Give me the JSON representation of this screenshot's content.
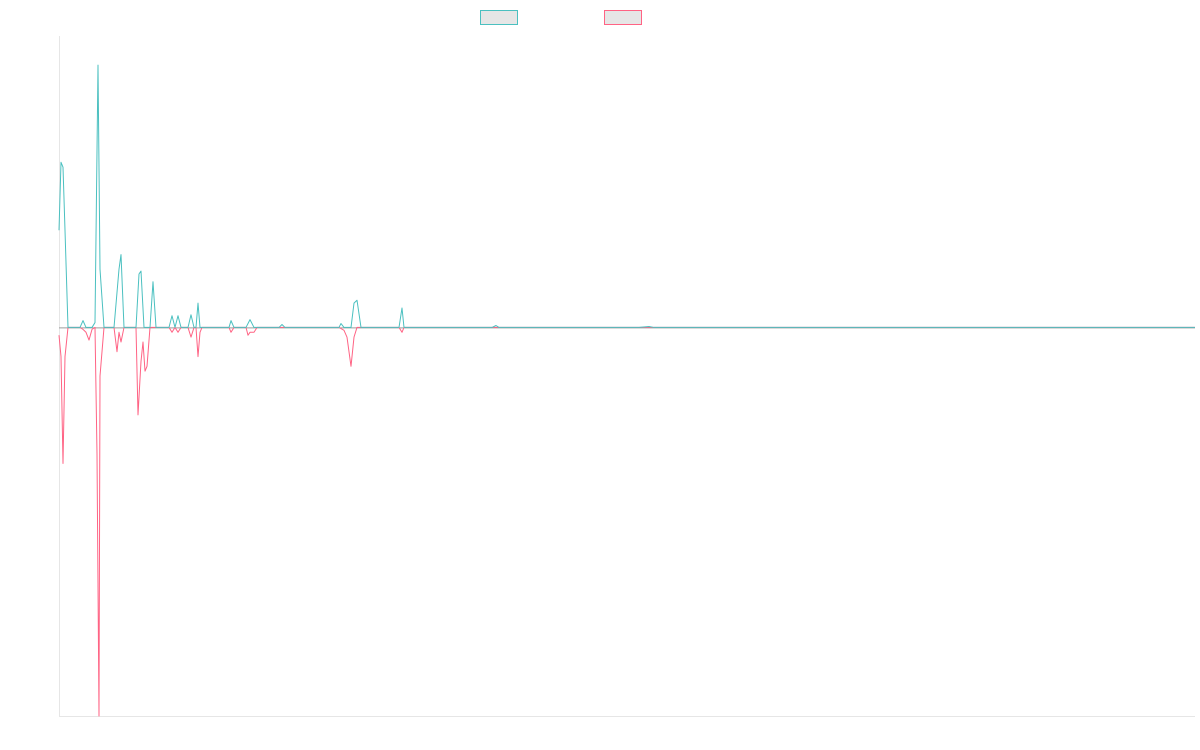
{
  "chart_data": {
    "type": "line",
    "title": "",
    "xlabel": "",
    "ylabel": "",
    "grid": false,
    "legend_position": "top-center",
    "x": [
      0,
      1,
      2,
      3,
      4,
      5,
      6,
      7,
      8,
      9,
      10,
      11,
      12,
      13,
      14,
      15,
      16,
      17,
      18,
      19,
      20,
      21,
      22,
      23,
      24,
      25,
      26,
      27,
      28,
      29,
      30,
      31,
      32,
      33,
      34,
      35,
      36,
      37,
      38,
      39,
      40,
      41,
      42,
      43,
      44,
      45,
      46,
      47,
      48,
      49,
      50,
      51,
      52,
      53,
      54,
      55,
      56,
      57,
      58,
      59,
      60,
      61,
      62,
      63,
      64,
      65,
      66,
      67,
      68,
      69,
      70,
      71,
      72,
      73,
      74,
      75,
      76,
      77,
      78,
      79,
      80,
      81,
      82,
      83,
      84,
      85,
      86,
      87,
      88,
      89,
      90,
      91,
      92,
      93,
      94,
      95,
      96,
      97,
      98,
      99,
      100,
      101,
      102,
      103,
      104,
      105,
      106,
      107,
      108,
      109,
      110,
      111,
      112,
      113,
      114,
      115,
      116,
      117,
      118,
      119,
      120,
      121,
      122,
      123,
      124,
      125,
      126,
      127,
      128,
      129,
      130,
      131,
      132,
      133,
      134,
      135,
      136,
      137,
      138,
      139,
      140,
      141,
      142,
      143,
      144,
      145,
      146,
      147,
      148,
      149,
      150,
      151,
      152,
      153,
      154,
      155,
      156,
      157,
      158,
      159,
      160,
      161,
      162,
      163,
      164,
      165,
      166,
      167,
      168,
      169,
      170,
      171,
      172,
      173,
      174,
      175,
      176,
      177,
      178,
      179,
      180,
      181,
      182,
      183,
      184,
      185,
      186,
      187,
      188,
      189,
      190,
      191,
      192,
      193,
      194,
      195,
      196,
      197,
      198,
      199,
      200,
      201,
      202,
      203,
      204,
      205,
      206,
      207,
      208,
      209,
      210,
      211,
      212,
      213,
      214,
      215,
      216,
      217,
      218,
      219,
      220,
      221,
      222,
      223,
      224,
      225,
      226,
      227,
      228,
      229,
      230,
      231,
      232,
      233,
      234,
      235,
      236,
      237,
      238,
      239,
      240,
      241,
      242,
      243,
      244,
      245,
      246,
      247,
      248,
      249,
      250,
      251,
      252,
      253,
      254,
      255,
      256,
      257,
      258,
      259,
      260,
      261,
      262,
      263,
      264,
      265,
      266,
      267,
      268,
      269,
      270,
      271,
      272,
      273,
      274,
      275,
      276,
      277,
      278,
      279,
      280,
      281,
      282,
      283,
      284,
      285,
      286,
      287,
      288,
      289,
      290,
      291,
      292,
      293,
      294,
      295,
      296,
      297,
      298,
      299,
      300,
      301,
      302,
      303,
      304,
      305,
      306,
      307,
      308,
      309,
      310,
      311,
      312,
      313,
      314,
      315,
      316,
      317,
      318,
      319,
      320,
      321,
      322,
      323,
      324,
      325,
      326,
      327,
      328,
      329,
      330,
      331,
      332,
      333,
      334,
      335,
      336,
      337,
      338,
      339,
      340,
      341,
      342,
      343,
      344,
      345,
      346,
      347,
      348,
      349,
      350,
      351,
      352,
      353,
      354,
      355,
      356,
      357,
      358,
      359,
      360,
      361,
      362,
      363,
      364,
      365,
      366,
      367,
      368,
      369,
      370,
      371,
      372,
      373,
      374,
      375,
      376,
      377,
      378,
      379,
      380,
      381,
      382,
      383,
      384,
      385,
      386,
      387,
      388,
      389,
      390,
      391,
      392,
      393,
      394,
      395,
      396,
      397,
      398,
      399,
      400,
      401,
      402,
      403,
      404,
      405,
      406,
      407,
      408,
      409,
      410,
      411,
      412,
      413,
      414,
      415,
      416,
      417,
      418,
      419,
      420,
      421,
      422,
      423,
      424,
      425,
      426,
      427,
      428,
      429,
      430,
      431,
      432,
      433,
      434,
      435,
      436,
      437,
      438,
      439,
      440,
      441,
      442,
      443,
      444,
      445,
      446,
      447,
      448,
      449,
      450,
      451,
      452,
      453,
      454,
      455,
      456,
      457,
      458,
      459,
      460,
      461,
      462,
      463,
      464,
      465,
      466,
      467,
      468,
      469,
      470,
      471,
      472,
      473,
      474,
      475,
      476,
      477,
      478,
      479,
      480,
      481,
      482,
      483,
      484,
      485,
      486,
      487,
      488,
      489,
      490,
      491,
      492,
      493,
      494,
      495,
      496,
      497,
      498,
      499,
      500,
      501,
      502,
      503,
      504,
      505,
      506,
      507,
      508,
      509,
      510,
      511,
      512,
      513,
      514,
      515,
      516,
      517,
      518,
      519,
      520,
      521,
      522,
      523,
      524,
      525,
      526,
      527,
      528,
      529,
      530,
      531,
      532,
      533,
      534,
      535,
      536,
      537,
      538,
      539,
      540,
      541,
      542,
      543,
      544,
      545,
      546,
      547,
      548,
      549,
      550,
      551,
      552,
      553,
      554,
      555,
      556,
      557,
      558,
      559,
      560,
      561,
      562,
      563,
      564,
      565,
      566,
      567,
      568,
      569,
      570,
      571,
      572,
      573,
      574,
      575,
      576,
      577,
      578,
      579,
      580,
      581,
      582,
      583,
      584,
      585,
      586,
      587,
      588,
      589,
      590,
      591,
      592,
      593,
      594,
      595,
      596,
      597,
      598,
      599,
      600,
      601,
      602,
      603,
      604,
      605,
      606,
      607,
      608,
      609,
      610,
      611,
      612,
      613,
      614,
      615,
      616,
      617,
      618,
      619,
      620,
      621,
      622,
      623,
      624,
      625,
      626,
      627,
      628,
      629,
      630,
      631,
      632,
      633,
      634,
      635,
      636,
      637,
      638,
      639,
      640,
      641,
      642,
      643,
      644,
      645,
      646,
      647,
      648,
      649,
      650,
      651,
      652,
      653,
      654,
      655,
      656,
      657,
      658,
      659,
      660,
      661,
      662,
      663,
      664,
      665,
      666,
      667,
      668,
      669,
      670,
      671,
      672,
      673,
      674,
      675,
      676,
      677,
      678,
      679,
      680,
      681,
      682,
      683,
      684,
      685,
      686,
      687,
      688,
      689,
      690,
      691,
      692,
      693,
      694,
      695,
      696,
      697,
      698,
      699,
      700,
      701,
      702,
      703,
      704,
      705,
      706,
      707,
      708,
      709,
      710,
      711,
      712,
      713,
      714,
      715,
      716,
      717,
      718,
      719,
      720,
      721,
      722,
      723,
      724,
      725,
      726,
      727,
      728,
      729,
      730,
      731,
      732,
      733,
      734,
      735,
      736,
      737,
      738,
      739,
      740,
      741,
      742,
      743,
      744,
      745,
      746,
      747,
      748,
      749,
      750,
      751,
      752,
      753,
      754,
      755,
      756,
      757,
      758,
      759,
      760,
      761,
      762,
      763,
      764,
      765,
      766,
      767,
      768,
      769,
      770,
      771,
      772,
      773,
      774,
      775,
      776,
      777,
      778,
      779,
      780,
      781,
      782,
      783,
      784,
      785,
      786,
      787,
      788,
      789,
      790,
      791,
      792,
      793,
      794,
      795,
      796,
      797,
      798,
      799,
      800,
      801,
      802,
      803,
      804,
      805,
      806,
      807,
      808,
      809,
      810,
      811,
      812,
      813,
      814,
      815,
      816,
      817,
      818,
      819,
      820,
      821,
      822,
      823,
      824,
      825,
      826,
      827,
      828,
      829,
      830,
      831,
      832,
      833,
      834,
      835,
      836,
      837,
      838,
      839,
      840,
      841,
      842,
      843,
      844,
      845,
      846,
      847,
      848,
      849,
      850,
      851,
      852,
      853,
      854,
      855,
      856,
      857,
      858,
      859,
      860,
      861,
      862,
      863,
      864,
      865,
      866,
      867,
      868,
      869,
      870,
      871,
      872,
      873,
      874,
      875,
      876,
      877,
      878,
      879,
      880,
      881,
      882,
      883,
      884,
      885,
      886,
      887,
      888,
      889,
      890,
      891,
      892,
      893,
      894,
      895,
      896,
      897,
      898,
      899,
      900,
      901,
      902,
      903,
      904,
      905,
      906,
      907,
      908,
      909,
      910,
      911,
      912,
      913,
      914,
      915,
      916,
      917,
      918,
      919,
      920,
      921,
      922,
      923,
      924,
      925,
      926,
      927,
      928,
      929,
      930,
      931,
      932,
      933,
      934,
      935,
      936,
      937,
      938,
      939,
      940,
      941,
      942,
      943,
      944,
      945,
      946,
      947,
      948,
      949,
      950,
      951,
      952,
      953,
      954,
      955,
      956,
      957,
      958,
      959,
      960,
      961,
      962,
      963,
      964,
      965,
      966,
      967,
      968,
      969,
      970,
      971,
      972,
      973,
      974,
      975,
      976,
      977,
      978,
      979,
      980,
      981,
      982,
      983,
      984,
      985,
      986,
      987,
      988,
      989,
      990,
      991,
      992,
      993,
      994,
      995,
      996,
      997,
      998,
      999,
      1000,
      1001,
      1002,
      1003,
      1004,
      1005,
      1006,
      1007,
      1008,
      1009,
      1010,
      1011,
      1012,
      1013,
      1014,
      1015,
      1016,
      1017,
      1018,
      1019,
      1020,
      1021,
      1022,
      1023,
      1024,
      1025,
      1026,
      1027,
      1028,
      1029,
      1030,
      1031,
      1032,
      1033,
      1034,
      1035,
      1036,
      1037,
      1038,
      1039,
      1040,
      1041,
      1042,
      1043,
      1044,
      1045,
      1046,
      1047,
      1048,
      1049,
      1050,
      1051,
      1052,
      1053,
      1054,
      1055,
      1056,
      1057,
      1058,
      1059,
      1060,
      1061,
      1062,
      1063,
      1064,
      1065,
      1066,
      1067,
      1068,
      1069,
      1070,
      1071,
      1072,
      1073,
      1074,
      1075,
      1076,
      1077,
      1078,
      1079,
      1080,
      1081,
      1082,
      1083,
      1084,
      1085,
      1086,
      1087,
      1088,
      1089,
      1090,
      1091,
      1092,
      1093,
      1094,
      1095,
      1096,
      1097,
      1098,
      1099,
      1100,
      1101,
      1102,
      1103,
      1104,
      1105,
      1106,
      1107,
      1108,
      1109,
      1110,
      1111,
      1112,
      1113,
      1114,
      1115,
      1116,
      1117,
      1118,
      1119,
      1120,
      1121,
      1122,
      1123,
      1124,
      1125,
      1126,
      1127,
      1128,
      1129,
      1130,
      1131,
      1132,
      1133,
      1134,
      1135,
      1136
    ],
    "x_ticks": [],
    "y_ticks": [],
    "ylim": [
      -0.4,
      0.3
    ],
    "xlim": [
      0,
      1136
    ],
    "baseline": 0,
    "series": [
      {
        "name": "",
        "color": "#4bc0c0",
        "spikes": [
          [
            0,
            0.1
          ],
          [
            2,
            0.17
          ],
          [
            4,
            0.165
          ],
          [
            6,
            0.1
          ],
          [
            9,
            0
          ],
          [
            21,
            0
          ],
          [
            24,
            0.007
          ],
          [
            27,
            0
          ],
          [
            33,
            0
          ],
          [
            36,
            0.005
          ],
          [
            39,
            0.27
          ],
          [
            41,
            0.06
          ],
          [
            45,
            0
          ],
          [
            55,
            0
          ],
          [
            60,
            0.06
          ],
          [
            62,
            0.075
          ],
          [
            65,
            0
          ],
          [
            77,
            0
          ],
          [
            80,
            0.055
          ],
          [
            82,
            0.058
          ],
          [
            85,
            0
          ],
          [
            91,
            0
          ],
          [
            94,
            0.047
          ],
          [
            97,
            0
          ],
          [
            110,
            0
          ],
          [
            113,
            0.012
          ],
          [
            116,
            0
          ],
          [
            119,
            0.012
          ],
          [
            122,
            0
          ],
          [
            129,
            0
          ],
          [
            132,
            0.013
          ],
          [
            135,
            0
          ],
          [
            137,
            0
          ],
          [
            139,
            0.025
          ],
          [
            141,
            0
          ],
          [
            143,
            0
          ],
          [
            170,
            0
          ],
          [
            172,
            0.007
          ],
          [
            175,
            0
          ],
          [
            187,
            0
          ],
          [
            191,
            0.008
          ],
          [
            195,
            0
          ],
          [
            220,
            0
          ],
          [
            223,
            0.003
          ],
          [
            226,
            0
          ],
          [
            280,
            0
          ],
          [
            282,
            0.004
          ],
          [
            285,
            0
          ],
          [
            292,
            0
          ],
          [
            295,
            0.025
          ],
          [
            298,
            0.028
          ],
          [
            302,
            0
          ],
          [
            340,
            0
          ],
          [
            343,
            0.02
          ],
          [
            345,
            0
          ],
          [
            433,
            0
          ],
          [
            437,
            0.002
          ],
          [
            440,
            0
          ],
          [
            580,
            0
          ],
          [
            590,
            0.001
          ],
          [
            595,
            0
          ],
          [
            1136,
            0
          ]
        ]
      },
      {
        "name": "",
        "color": "#ff6384",
        "spikes": [
          [
            0,
            -0.008
          ],
          [
            2,
            -0.03
          ],
          [
            4,
            -0.14
          ],
          [
            6,
            -0.03
          ],
          [
            9,
            0
          ],
          [
            21,
            0
          ],
          [
            24,
            -0.002
          ],
          [
            27,
            -0.005
          ],
          [
            30,
            -0.013
          ],
          [
            33,
            -0.002
          ],
          [
            36,
            0
          ],
          [
            38,
            -0.13
          ],
          [
            40,
            -0.4
          ],
          [
            41,
            -0.05
          ],
          [
            45,
            0
          ],
          [
            55,
            0
          ],
          [
            58,
            -0.025
          ],
          [
            60,
            -0.005
          ],
          [
            62,
            -0.015
          ],
          [
            65,
            0
          ],
          [
            77,
            0
          ],
          [
            79,
            -0.09
          ],
          [
            82,
            -0.035
          ],
          [
            84,
            -0.015
          ],
          [
            86,
            -0.045
          ],
          [
            88,
            -0.04
          ],
          [
            91,
            0
          ],
          [
            110,
            0
          ],
          [
            113,
            -0.005
          ],
          [
            116,
            0
          ],
          [
            119,
            -0.005
          ],
          [
            122,
            0
          ],
          [
            129,
            0
          ],
          [
            132,
            -0.01
          ],
          [
            135,
            0
          ],
          [
            137,
            0
          ],
          [
            139,
            -0.03
          ],
          [
            141,
            -0.005
          ],
          [
            143,
            0
          ],
          [
            170,
            0
          ],
          [
            172,
            -0.005
          ],
          [
            175,
            0
          ],
          [
            187,
            0
          ],
          [
            189,
            -0.008
          ],
          [
            191,
            -0.005
          ],
          [
            195,
            -0.005
          ],
          [
            198,
            0
          ],
          [
            280,
            0
          ],
          [
            285,
            -0.003
          ],
          [
            288,
            -0.01
          ],
          [
            292,
            -0.04
          ],
          [
            295,
            -0.01
          ],
          [
            298,
            0
          ],
          [
            340,
            0
          ],
          [
            343,
            -0.005
          ],
          [
            345,
            0
          ],
          [
            1136,
            0
          ]
        ]
      }
    ]
  }
}
